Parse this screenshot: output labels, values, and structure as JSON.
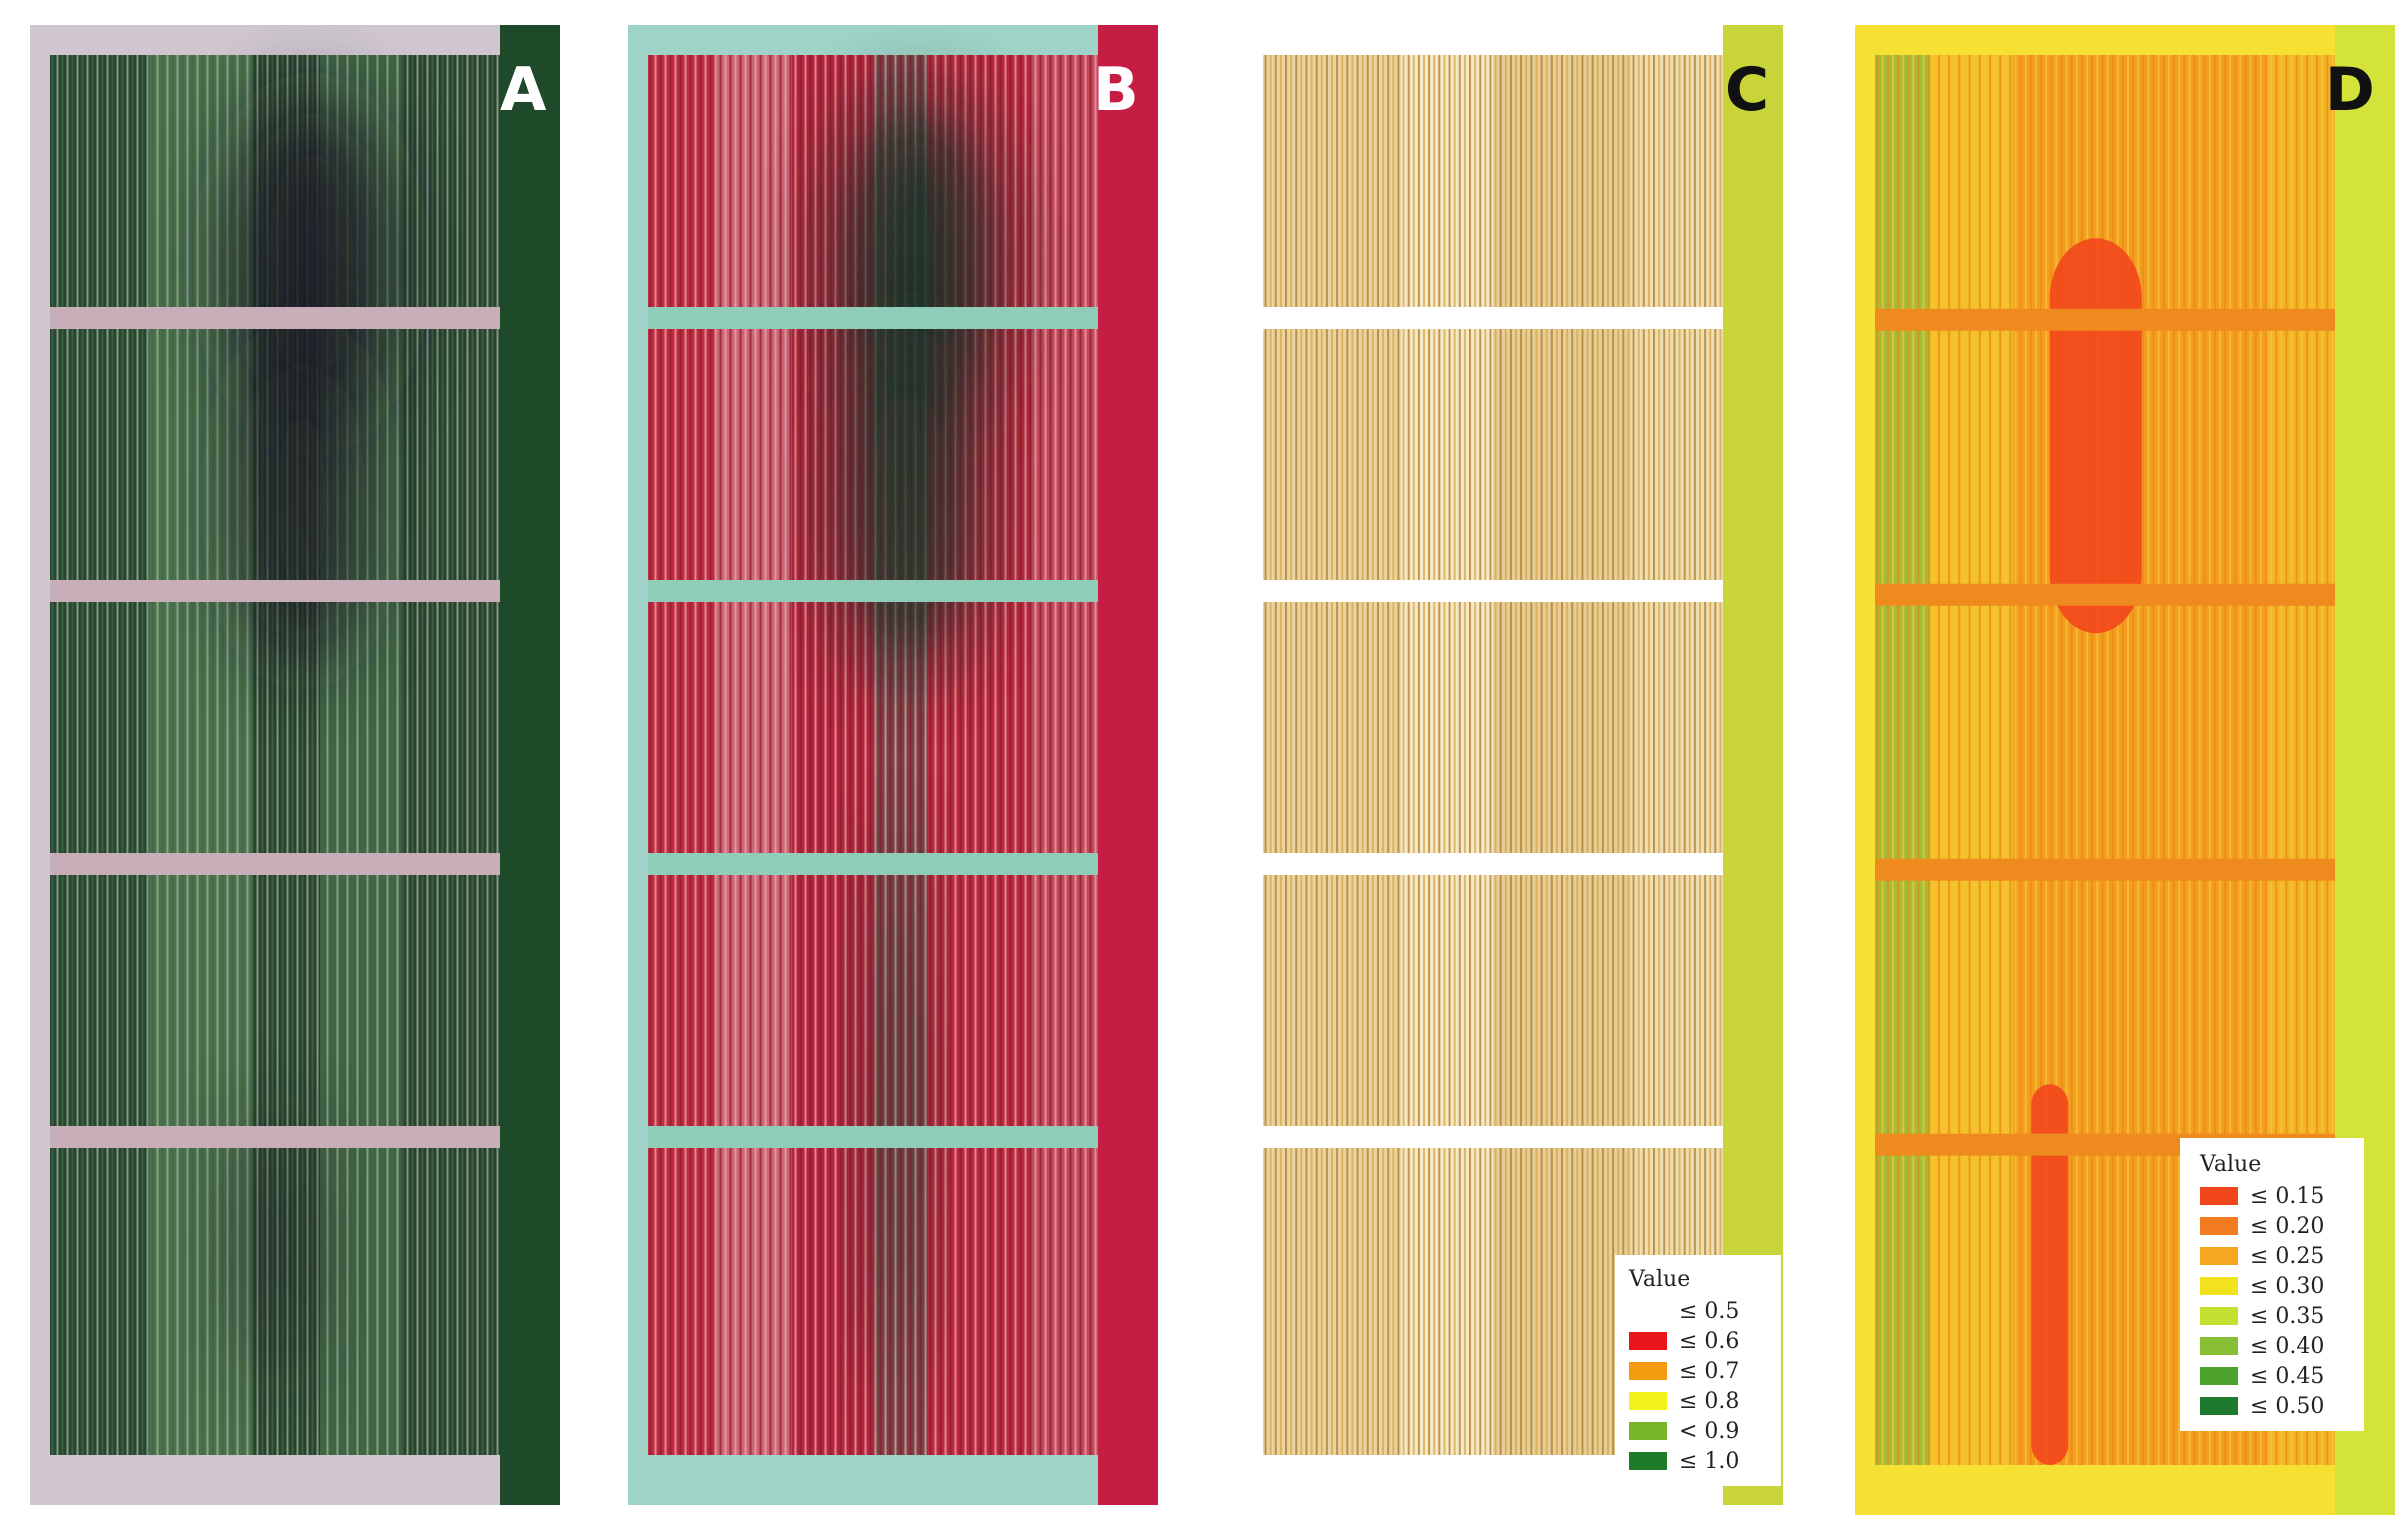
{
  "panels": [
    {
      "letter": "A",
      "palette": {
        "base": "#2f4a35",
        "row_light": "#9db89a",
        "row_dark": "#3f6a43",
        "border": "#cfc6cf",
        "gap": "#c7aeb8",
        "strip": "#1e4a2a",
        "shadow": "#1b1b28"
      }
    },
    {
      "letter": "B",
      "palette": {
        "base": "#b5283c",
        "row_light": "#e9a8b2",
        "row_dark": "#8d1c30",
        "border": "#9fd3c8",
        "gap": "#8fcdb8",
        "strip": "#c61d45",
        "shadow": "#183028"
      }
    },
    {
      "letter": "C",
      "palette": {
        "base": "#f2e8c8",
        "row_light": "#d9a74a",
        "row_dark": "#b07a2e",
        "border": "#ffffff",
        "gap": "#ffffff",
        "strip": "#c9d43a",
        "shadow": "#f2e8c8"
      }
    },
    {
      "letter": "D",
      "palette": {
        "base": "#f7a21d",
        "row_light": "#f5c43a",
        "row_dark": "#e8891c",
        "border": "#f5e033",
        "gap": "#ef8a1f",
        "strip": "#d3e33a",
        "shadow": "#f24b1c"
      }
    }
  ],
  "legend_c": {
    "title": "Value",
    "items": [
      {
        "label": "≤ 0.5",
        "color": "#ffffff"
      },
      {
        "label": "≤ 0.6",
        "color": "#e8151b"
      },
      {
        "label": "≤ 0.7",
        "color": "#f39c12"
      },
      {
        "label": "≤ 0.8",
        "color": "#f2f21d"
      },
      {
        "label": "< 0.9",
        "color": "#78b72c"
      },
      {
        "label": "≤ 1.0",
        "color": "#1f7a2a"
      }
    ]
  },
  "legend_d": {
    "title": "Value",
    "items": [
      {
        "label": "≤ 0.15",
        "color": "#f2461c"
      },
      {
        "label": "≤ 0.20",
        "color": "#f47c20"
      },
      {
        "label": "≤ 0.25",
        "color": "#f5a623"
      },
      {
        "label": "≤ 0.30",
        "color": "#f2e11d"
      },
      {
        "label": "≤ 0.35",
        "color": "#c4df2f"
      },
      {
        "label": "≤ 0.40",
        "color": "#88bf35"
      },
      {
        "label": "≤ 0.45",
        "color": "#4ea32e"
      },
      {
        "label": "≤ 0.50",
        "color": "#1d7a2e"
      }
    ]
  }
}
